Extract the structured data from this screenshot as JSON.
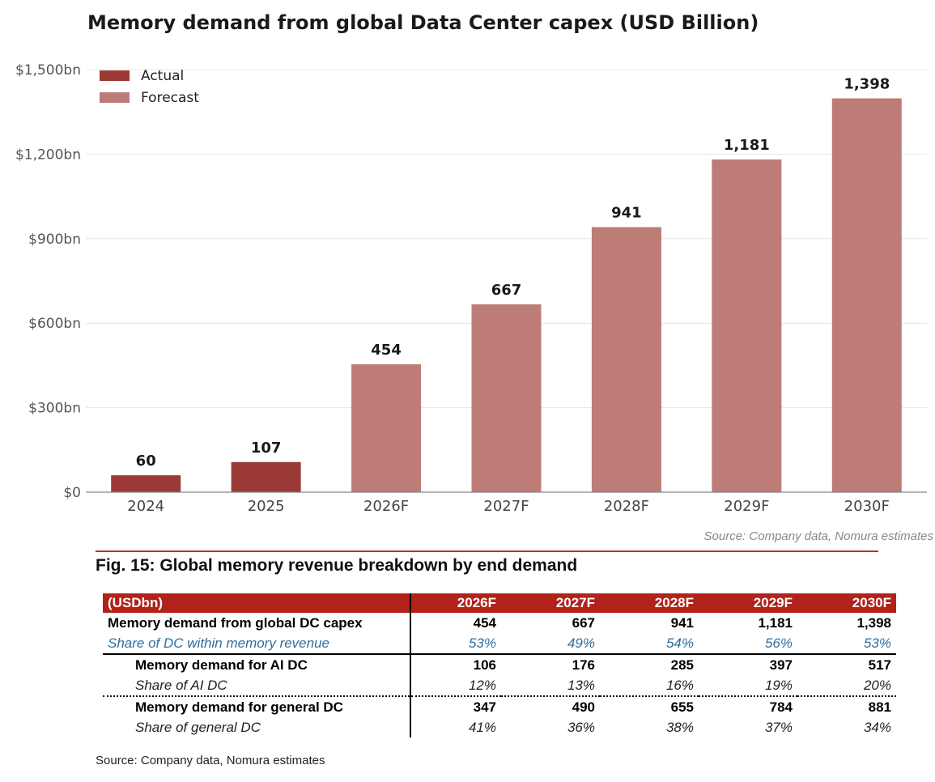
{
  "chart_data": {
    "type": "bar",
    "title": "Memory demand from global Data Center capex (USD Billion)",
    "categories": [
      "2024",
      "2025",
      "2026F",
      "2027F",
      "2028F",
      "2029F",
      "2030F"
    ],
    "values": [
      60,
      107,
      454,
      667,
      941,
      1181,
      1398
    ],
    "value_labels": [
      "60",
      "107",
      "454",
      "667",
      "941",
      "1,181",
      "1,398"
    ],
    "bar_kind": [
      "Actual",
      "Actual",
      "Forecast",
      "Forecast",
      "Forecast",
      "Forecast",
      "Forecast"
    ],
    "series": [
      {
        "name": "Actual",
        "color": "#9b3a35"
      },
      {
        "name": "Forecast",
        "color": "#bd7c77"
      }
    ],
    "yticks": [
      0,
      300,
      600,
      900,
      1200,
      1500
    ],
    "ytick_labels": [
      "$0",
      "$300bn",
      "$600bn",
      "$900bn",
      "$1,200bn",
      "$1,500bn"
    ],
    "ylim": [
      0,
      1500
    ],
    "grid": true,
    "legend_position": "top-left",
    "xlabel": "",
    "ylabel": "",
    "source": "Source: Company data, Nomura estimates"
  },
  "table": {
    "title": "Fig. 15: Global memory revenue breakdown by end demand",
    "header": [
      "(USDbn)",
      "2026F",
      "2027F",
      "2028F",
      "2029F",
      "2030F"
    ],
    "rows": [
      {
        "label": "Memory demand from global DC capex",
        "values": [
          "454",
          "667",
          "941",
          "1,181",
          "1,398"
        ]
      },
      {
        "label": "Share of DC within memory revenue",
        "values": [
          "53%",
          "49%",
          "54%",
          "56%",
          "53%"
        ]
      },
      {
        "label": "Memory demand for AI DC",
        "values": [
          "106",
          "176",
          "285",
          "397",
          "517"
        ]
      },
      {
        "label": "Share of AI DC",
        "values": [
          "12%",
          "13%",
          "16%",
          "19%",
          "20%"
        ]
      },
      {
        "label": "Memory demand for general DC",
        "values": [
          "347",
          "490",
          "655",
          "784",
          "881"
        ]
      },
      {
        "label": "Share of general DC",
        "values": [
          "41%",
          "36%",
          "38%",
          "37%",
          "34%"
        ]
      }
    ],
    "source": "Source: Company data, Nomura estimates"
  }
}
